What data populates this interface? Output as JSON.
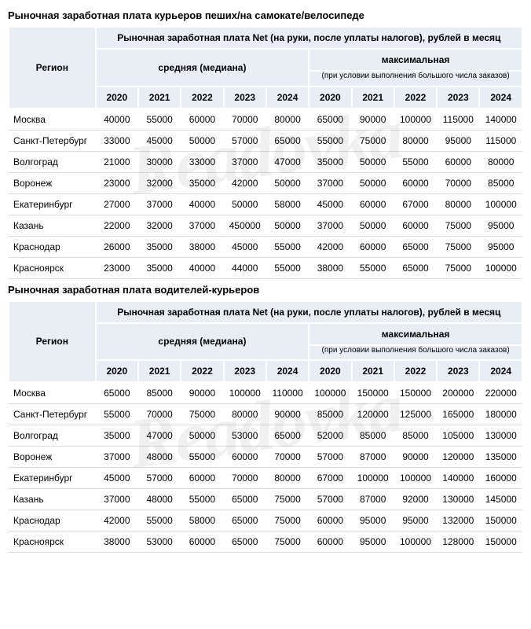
{
  "colors": {
    "header_bg": "#e8eef4",
    "border_white": "#ffffff",
    "row_divider": "#d8dde2",
    "text": "#000000",
    "background": "#ffffff",
    "watermark": "rgba(0,0,0,0.06)"
  },
  "watermark": "Readovka",
  "years": [
    "2020",
    "2021",
    "2022",
    "2023",
    "2024"
  ],
  "header": {
    "region": "Регион",
    "net_line": "Рыночная заработная плата Net (на руки, после уплаты налогов), рублей в месяц",
    "median": "средняя (медиана)",
    "max": "максимальная",
    "max_note": "(при условии выполнения большого числа заказов)"
  },
  "tables": [
    {
      "title": "Рыночная заработная плата курьеров пеших/на самокате/велосипеде",
      "rows": [
        {
          "region": "Москва",
          "median": [
            40000,
            55000,
            60000,
            70000,
            80000
          ],
          "max": [
            65000,
            90000,
            100000,
            115000,
            140000
          ]
        },
        {
          "region": "Санкт-Петербург",
          "median": [
            33000,
            45000,
            50000,
            57000,
            65000
          ],
          "max": [
            55000,
            75000,
            80000,
            95000,
            115000
          ]
        },
        {
          "region": "Волгоград",
          "median": [
            21000,
            30000,
            33000,
            37000,
            47000
          ],
          "max": [
            35000,
            50000,
            55000,
            60000,
            80000
          ]
        },
        {
          "region": "Воронеж",
          "median": [
            23000,
            32000,
            35000,
            42000,
            50000
          ],
          "max": [
            37000,
            50000,
            60000,
            70000,
            85000
          ]
        },
        {
          "region": "Екатеринбург",
          "median": [
            27000,
            37000,
            40000,
            50000,
            58000
          ],
          "max": [
            45000,
            60000,
            67000,
            80000,
            100000
          ]
        },
        {
          "region": "Казань",
          "median": [
            22000,
            32000,
            37000,
            450000,
            50000
          ],
          "max": [
            37000,
            50000,
            60000,
            75000,
            95000
          ]
        },
        {
          "region": "Краснодар",
          "median": [
            26000,
            35000,
            38000,
            45000,
            55000
          ],
          "max": [
            42000,
            60000,
            65000,
            75000,
            95000
          ]
        },
        {
          "region": "Красноярск",
          "median": [
            23000,
            35000,
            40000,
            44000,
            55000
          ],
          "max": [
            38000,
            55000,
            65000,
            75000,
            100000
          ]
        }
      ]
    },
    {
      "title": "Рыночная заработная плата водителей-курьеров",
      "rows": [
        {
          "region": "Москва",
          "median": [
            65000,
            85000,
            90000,
            100000,
            110000
          ],
          "max": [
            100000,
            150000,
            150000,
            200000,
            220000
          ]
        },
        {
          "region": "Санкт-Петербург",
          "median": [
            55000,
            70000,
            75000,
            80000,
            90000
          ],
          "max": [
            85000,
            120000,
            125000,
            165000,
            180000
          ]
        },
        {
          "region": "Волгоград",
          "median": [
            35000,
            47000,
            50000,
            53000,
            65000
          ],
          "max": [
            52000,
            85000,
            85000,
            105000,
            130000
          ]
        },
        {
          "region": "Воронеж",
          "median": [
            37000,
            48000,
            55000,
            60000,
            70000
          ],
          "max": [
            57000,
            87000,
            90000,
            120000,
            135000
          ]
        },
        {
          "region": "Екатеринбург",
          "median": [
            45000,
            57000,
            60000,
            70000,
            80000
          ],
          "max": [
            67000,
            100000,
            100000,
            140000,
            160000
          ]
        },
        {
          "region": "Казань",
          "median": [
            37000,
            48000,
            55000,
            65000,
            75000
          ],
          "max": [
            57000,
            87000,
            92000,
            130000,
            145000
          ]
        },
        {
          "region": "Краснодар",
          "median": [
            42000,
            55000,
            58000,
            65000,
            75000
          ],
          "max": [
            60000,
            95000,
            95000,
            132000,
            150000
          ]
        },
        {
          "region": "Красноярск",
          "median": [
            38000,
            53000,
            60000,
            65000,
            75000
          ],
          "max": [
            60000,
            95000,
            100000,
            128000,
            150000
          ]
        }
      ]
    }
  ]
}
